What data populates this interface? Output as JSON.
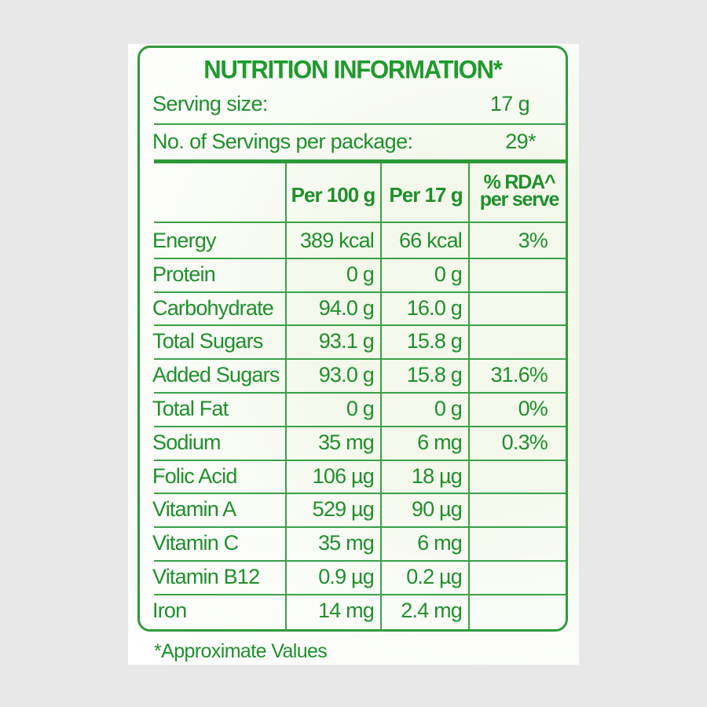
{
  "title": "NUTRITION INFORMATION*",
  "serving": {
    "size_label": "Serving size:",
    "size_value": "17 g",
    "count_label": "No. of Servings per package:",
    "count_value": "29*"
  },
  "table": {
    "headers": [
      "",
      "Per 100 g",
      "Per 17 g",
      "% RDA^",
      "per serve"
    ],
    "rows": [
      {
        "name": "Energy",
        "per100": "389 kcal",
        "per17": "66 kcal",
        "rda": "3%"
      },
      {
        "name": "Protein",
        "per100": "0 g",
        "per17": "0 g",
        "rda": ""
      },
      {
        "name": "Carbohydrate",
        "per100": "94.0 g",
        "per17": "16.0 g",
        "rda": ""
      },
      {
        "name": "Total Sugars",
        "per100": "93.1 g",
        "per17": "15.8 g",
        "rda": ""
      },
      {
        "name": "Added Sugars",
        "per100": "93.0 g",
        "per17": "15.8 g",
        "rda": "31.6%"
      },
      {
        "name": "Total Fat",
        "per100": "0 g",
        "per17": "0 g",
        "rda": "0%"
      },
      {
        "name": "Sodium",
        "per100": "35 mg",
        "per17": "6 mg",
        "rda": "0.3%"
      },
      {
        "name": "Folic Acid",
        "per100": "106 µg",
        "per17": "18 µg",
        "rda": ""
      },
      {
        "name": "Vitamin A",
        "per100": "529 µg",
        "per17": "90 µg",
        "rda": ""
      },
      {
        "name": "Vitamin C",
        "per100": "35 mg",
        "per17": "6 mg",
        "rda": ""
      },
      {
        "name": "Vitamin B12",
        "per100": "0.9 µg",
        "per17": "0.2 µg",
        "rda": ""
      },
      {
        "name": "Iron",
        "per100": "14 mg",
        "per17": "2.4 mg",
        "rda": ""
      }
    ]
  },
  "footnote": "*Approximate Values"
}
